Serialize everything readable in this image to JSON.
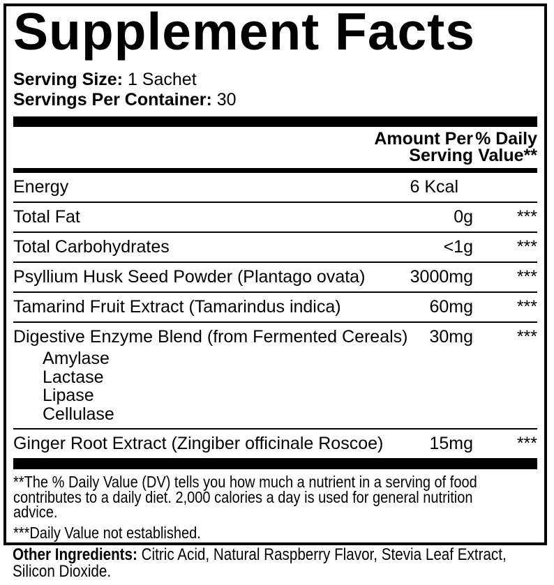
{
  "title": "Supplement Facts",
  "serving": {
    "size_label": "Serving Size:",
    "size_value": "1 Sachet",
    "per_container_label": "Servings Per Container:",
    "per_container_value": "30"
  },
  "columns": {
    "amount_header_line1": "Amount Per",
    "amount_header_line2": "Serving",
    "dv_header_line1": "% Daily",
    "dv_header_line2": "Value**"
  },
  "rows": [
    {
      "name": "Energy",
      "amount": "6 Kcal",
      "dv": ""
    },
    {
      "name": "Total Fat",
      "amount": "0g",
      "dv": "***"
    },
    {
      "name": "Total Carbohydrates",
      "amount": "<1g",
      "dv": "***"
    },
    {
      "name": "Psyllium Husk Seed Powder (Plantago ovata)",
      "amount": "3000mg",
      "dv": "***"
    },
    {
      "name": "Tamarind Fruit Extract (Tamarindus indica)",
      "amount": "60mg",
      "dv": "***"
    },
    {
      "name": "Digestive Enzyme Blend (from Fermented Cereals)",
      "amount": "30mg",
      "dv": "***",
      "sub_items": [
        "Amylase",
        "Lactase",
        "Lipase",
        "Cellulase"
      ]
    },
    {
      "name": "Ginger Root Extract (Zingiber officinale Roscoe)",
      "amount": "15mg",
      "dv": "***"
    }
  ],
  "footnotes": {
    "dv_note_lines": [
      "**The % Daily Value (DV) tells you how much a nutrient in a serving of food",
      "contributes to a daily diet. 2,000 calories a day is used for general nutrition",
      "advice."
    ],
    "nd_note": "***Daily Value not established."
  },
  "other_ingredients": {
    "label": "Other Ingredients:",
    "line1_rest": "Citric Acid, Natural Raspberry Flavor, Stevia Leaf Extract,",
    "line2": "Silicon Dioxide."
  },
  "colors": {
    "text": "#000000",
    "background": "#ffffff",
    "border": "#000000"
  }
}
